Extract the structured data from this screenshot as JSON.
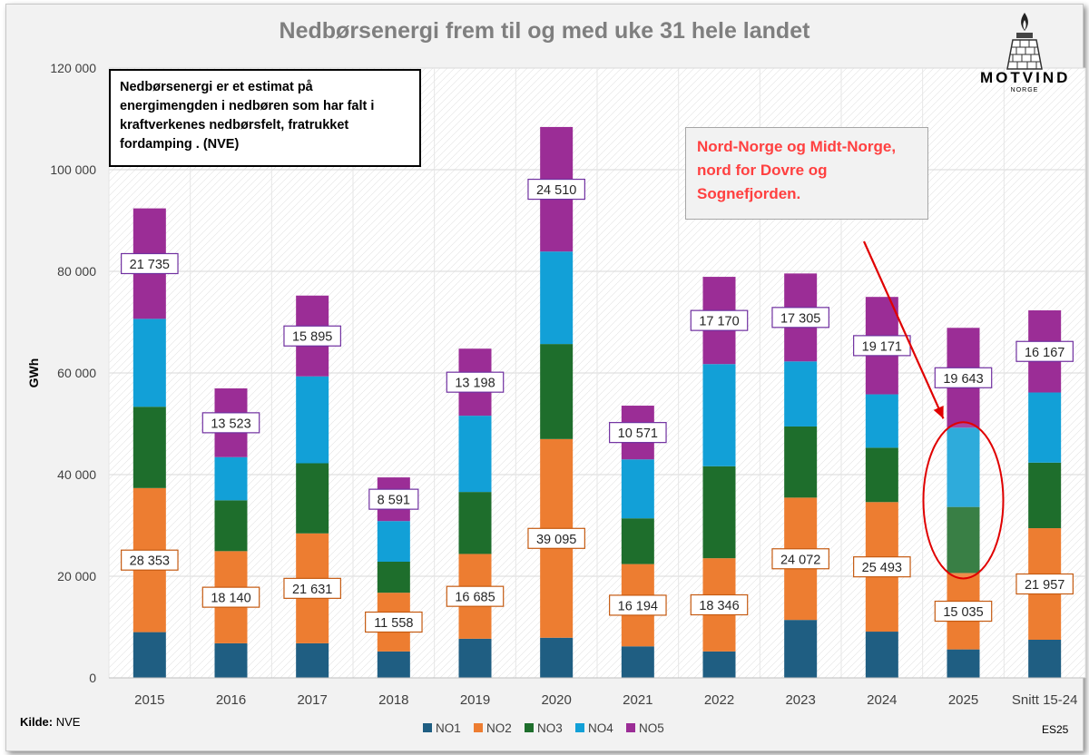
{
  "title": "Nedbørsenergi frem til og med uke 31 hele landet",
  "info_text": "Nedbørsenergi er et estimat på energimengden i nedbøren som har falt i kraftverkenes nedbørsfelt, fratrukket fordamping . (NVE)",
  "region_text": "Nord-Norge og Midt-Norge, nord for Dovre og Sognefjorden.",
  "source_label": "Kilde:",
  "source_value": "NVE",
  "signature": "ES25",
  "logo": {
    "name": "MOTVIND",
    "sub": "NORGE"
  },
  "colors": {
    "NO1": "#1f5e82",
    "NO2": "#ed7d31",
    "NO3": "#1e6e2c",
    "NO4": "#12a0d7",
    "NO5": "#9b2d96",
    "label_border_no2": "#c55a11",
    "label_border_no5": "#7030a0",
    "region_text": "#ff4040",
    "highlight": "#e00000"
  },
  "chart_data": {
    "type": "bar",
    "stacked": true,
    "title": "Nedbørsenergi frem til og med uke 31 hele landet",
    "ylabel": "GWh",
    "xlabel": "",
    "ylim": [
      0,
      120000
    ],
    "yticks": [
      0,
      20000,
      40000,
      60000,
      80000,
      100000,
      120000
    ],
    "ytick_labels": [
      "0",
      "20 000",
      "40 000",
      "60 000",
      "80 000",
      "100 000",
      "120 000"
    ],
    "categories": [
      "2015",
      "2016",
      "2017",
      "2018",
      "2019",
      "2020",
      "2021",
      "2022",
      "2023",
      "2024",
      "2025",
      "Snitt 15-24"
    ],
    "series": [
      {
        "name": "NO1",
        "values": [
          9000,
          6800,
          6800,
          5200,
          7700,
          7900,
          6200,
          5200,
          11400,
          9100,
          5600,
          7500
        ]
      },
      {
        "name": "NO2",
        "values": [
          28353,
          18140,
          21631,
          11558,
          16685,
          39095,
          16194,
          18346,
          24072,
          25493,
          15035,
          21957
        ]
      },
      {
        "name": "NO3",
        "values": [
          16000,
          10000,
          13800,
          6100,
          12200,
          18700,
          9000,
          18100,
          14000,
          10700,
          13000,
          12900
        ]
      },
      {
        "name": "NO4",
        "values": [
          17300,
          8500,
          17100,
          8000,
          15000,
          18200,
          11600,
          20100,
          12800,
          10500,
          15600,
          13800
        ]
      },
      {
        "name": "NO5",
        "values": [
          21735,
          13523,
          15895,
          8591,
          13198,
          24510,
          10571,
          17170,
          17305,
          19171,
          19643,
          16167
        ]
      }
    ],
    "data_labels": {
      "NO2": [
        "28 353",
        "18 140",
        "21 631",
        "11 558",
        "16 685",
        "39 095",
        "16 194",
        "18 346",
        "24 072",
        "25 493",
        "15 035",
        "21 957"
      ],
      "NO5": [
        "21 735",
        "13 523",
        "15 895",
        "8 591",
        "13 198",
        "24 510",
        "10 571",
        "17 170",
        "17 305",
        "19 171",
        "19 643",
        "16 167"
      ]
    },
    "legend": [
      "NO1",
      "NO2",
      "NO3",
      "NO4",
      "NO5"
    ],
    "legend_position": "bottom",
    "grid": true,
    "highlight_category": "2025"
  }
}
